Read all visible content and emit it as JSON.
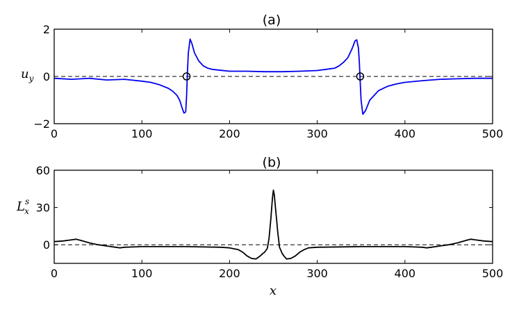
{
  "chart_data": [
    {
      "type": "line",
      "title": "(a)",
      "xlabel": "",
      "ylabel": "u_y",
      "ylabel_main": "u",
      "ylabel_sub": "y",
      "xlim": [
        0,
        500
      ],
      "ylim": [
        -2,
        2
      ],
      "xticks": [
        "0",
        "100",
        "200",
        "300",
        "400",
        "500"
      ],
      "yticks": [
        "−2",
        "0",
        "2"
      ],
      "xtick_values": [
        0,
        100,
        200,
        300,
        400,
        500
      ],
      "ytick_values": [
        -2,
        0,
        2
      ],
      "grid": false,
      "reference_line": {
        "y": 0,
        "style": "dashed",
        "color": "#000000"
      },
      "series": [
        {
          "color": "#0000ee",
          "x": [
            0,
            20,
            40,
            60,
            80,
            100,
            110,
            120,
            130,
            135,
            140,
            143,
            146,
            148,
            150,
            151,
            152,
            153,
            155,
            157,
            160,
            165,
            170,
            175,
            180,
            190,
            200,
            220,
            240,
            260,
            280,
            300,
            310,
            320,
            325,
            330,
            335,
            340,
            343,
            345,
            347,
            348,
            349,
            350,
            352,
            355,
            360,
            370,
            380,
            390,
            400,
            420,
            440,
            460,
            480,
            500
          ],
          "y": [
            -0.08,
            -0.12,
            -0.08,
            -0.15,
            -0.12,
            -0.2,
            -0.25,
            -0.35,
            -0.5,
            -0.62,
            -0.8,
            -1.0,
            -1.35,
            -1.55,
            -1.5,
            -0.8,
            0.2,
            1.0,
            1.58,
            1.4,
            1.0,
            0.65,
            0.45,
            0.35,
            0.3,
            0.26,
            0.22,
            0.22,
            0.2,
            0.2,
            0.22,
            0.25,
            0.3,
            0.35,
            0.45,
            0.6,
            0.8,
            1.2,
            1.5,
            1.55,
            1.2,
            0.6,
            -0.2,
            -1.0,
            -1.6,
            -1.45,
            -1.0,
            -0.6,
            -0.42,
            -0.32,
            -0.25,
            -0.18,
            -0.12,
            -0.1,
            -0.08,
            -0.08
          ]
        }
      ],
      "markers": [
        {
          "x": 151,
          "y": 0,
          "shape": "open-circle"
        },
        {
          "x": 349,
          "y": 0,
          "shape": "open-circle"
        }
      ]
    },
    {
      "type": "line",
      "title": "(b)",
      "xlabel": "x",
      "ylabel": "L_x^s",
      "ylabel_main": "L",
      "ylabel_sub": "x",
      "ylabel_sup": "s",
      "xlim": [
        0,
        500
      ],
      "ylim": [
        -15,
        60
      ],
      "xticks": [
        "0",
        "100",
        "200",
        "300",
        "400",
        "500"
      ],
      "yticks": [
        "0",
        "30",
        "60"
      ],
      "xtick_values": [
        0,
        100,
        200,
        300,
        400,
        500
      ],
      "ytick_values": [
        0,
        30,
        60
      ],
      "grid": false,
      "reference_line": {
        "y": 0,
        "style": "dashed",
        "color": "#000000"
      },
      "series": [
        {
          "color": "#000000",
          "x": [
            0,
            10,
            20,
            25,
            30,
            40,
            50,
            60,
            70,
            75,
            80,
            100,
            150,
            190,
            200,
            210,
            215,
            220,
            225,
            230,
            235,
            238,
            240,
            243,
            245,
            247,
            249,
            250,
            251,
            253,
            255,
            257,
            260,
            262,
            265,
            270,
            275,
            280,
            285,
            290,
            300,
            350,
            400,
            420,
            425,
            430,
            440,
            450,
            460,
            470,
            475,
            480,
            490,
            500
          ],
          "y": [
            2.5,
            3,
            4,
            4.5,
            3.5,
            1.5,
            0,
            -1,
            -2,
            -2.5,
            -2,
            -1.5,
            -1.5,
            -2,
            -2.5,
            -4,
            -6,
            -9,
            -11,
            -11.5,
            -9,
            -7,
            -6,
            -3,
            5,
            20,
            38,
            44,
            40,
            25,
            10,
            -2,
            -7,
            -9,
            -11.5,
            -11,
            -9,
            -6,
            -4,
            -2.5,
            -2,
            -1.5,
            -1.5,
            -2,
            -2.5,
            -2,
            -1,
            0,
            1.5,
            3.5,
            4.5,
            4,
            3,
            2.5
          ]
        }
      ]
    }
  ]
}
